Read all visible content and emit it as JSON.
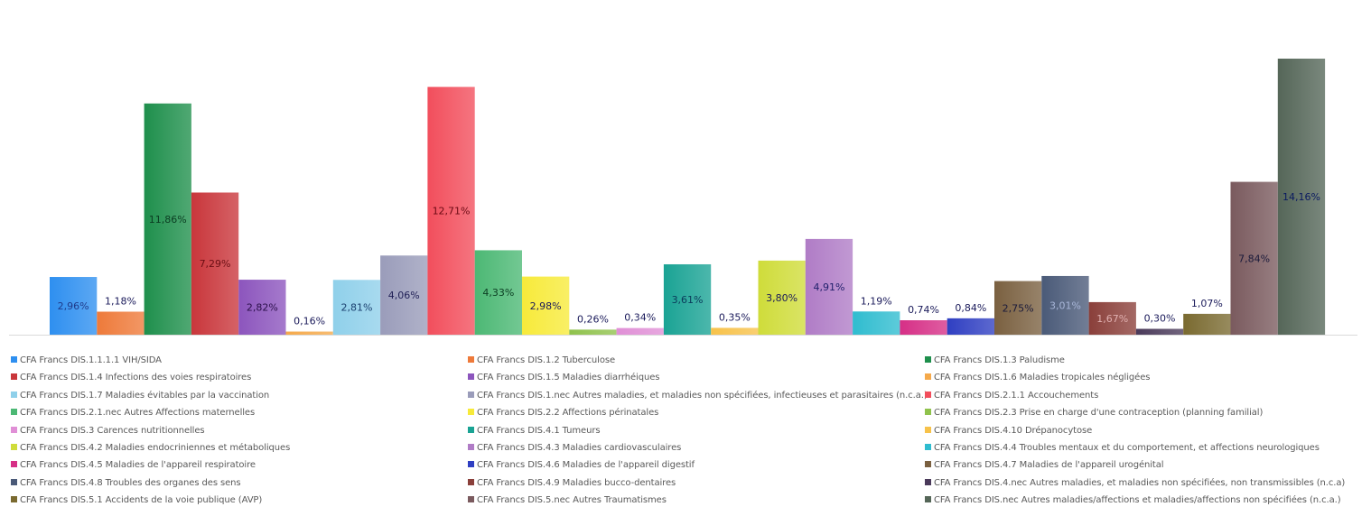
{
  "chart_data": {
    "type": "bar",
    "title": "",
    "xlabel": "",
    "ylabel": "",
    "ylim": [
      0,
      14.16
    ],
    "grid": false,
    "legend_position": "bottom",
    "value_suffix": "%",
    "series": [
      {
        "name": "CFA Francs DIS.1.1.1.1 VIH/SIDA",
        "value": 2.96,
        "label": "2,96%",
        "color": "#2e8ff0",
        "label_color": "#1f3a8a"
      },
      {
        "name": "CFA Francs DIS.1.2 Tuberculose",
        "value": 1.18,
        "label": "1,18%",
        "color": "#ee7a3a",
        "label_color": "#7f2a10"
      },
      {
        "name": "CFA Francs DIS.1.3 Paludisme",
        "value": 11.86,
        "label": "11,86%",
        "color": "#1e8f4c",
        "label_color": "#0b3d22"
      },
      {
        "name": "CFA Francs DIS.1.4 Infections des voies respiratoires",
        "value": 7.29,
        "label": "7,29%",
        "color": "#c9363b",
        "label_color": "#6b0f14"
      },
      {
        "name": "CFA Francs DIS.1.5 Maladies diarrhéiques",
        "value": 2.82,
        "label": "2,82%",
        "color": "#8c55bd",
        "label_color": "#2b0f4a"
      },
      {
        "name": "CFA Francs DIS.1.6 Maladies tropicales négligées",
        "value": 0.16,
        "label": "0,16%",
        "color": "#f5a94a",
        "label_color": "#1a1a5a"
      },
      {
        "name": "CFA Francs DIS.1.7 Maladies évitables par la vaccination",
        "value": 2.81,
        "label": "2,81%",
        "color": "#8fd0ea",
        "label_color": "#1a3f6e"
      },
      {
        "name": "CFA Francs DIS.1.nec Autres maladies, et maladies non spécifiées, infectieuses et parasitaires (n.c.a.)",
        "value": 4.06,
        "label": "4,06%",
        "color": "#9a9cba",
        "label_color": "#1f1f55"
      },
      {
        "name": "CFA Francs DIS.2.1.1 Accouchements",
        "value": 12.71,
        "label": "12,71%",
        "color": "#f24e5c",
        "label_color": "#6b0a14"
      },
      {
        "name": "CFA Francs DIS.2.1.nec Autres Affections maternelles",
        "value": 4.33,
        "label": "4,33%",
        "color": "#4cb874",
        "label_color": "#0b3d22"
      },
      {
        "name": "CFA Francs DIS.2.2 Affections périnatales",
        "value": 2.98,
        "label": "2,98%",
        "color": "#f7ea3a",
        "label_color": "#1a1a5a"
      },
      {
        "name": "CFA Francs DIS.2.3 Prise en charge d'une contraception (planning familial)",
        "value": 0.26,
        "label": "0,26%",
        "color": "#8fc24c",
        "label_color": "#1a1a5a"
      },
      {
        "name": "CFA Francs DIS.3 Carences nutritionnelles",
        "value": 0.34,
        "label": "0,34%",
        "color": "#e08fd6",
        "label_color": "#1a1a5a"
      },
      {
        "name": "CFA Francs DIS.4.1 Tumeurs",
        "value": 3.61,
        "label": "3,61%",
        "color": "#1aa394",
        "label_color": "#0a3a5a"
      },
      {
        "name": "CFA Francs DIS.4.10 Drépanocytose",
        "value": 0.35,
        "label": "0,35%",
        "color": "#f7c24a",
        "label_color": "#1a1a5a"
      },
      {
        "name": "CFA Francs DIS.4.2 Maladies endocriniennes et métaboliques",
        "value": 3.8,
        "label": "3,80%",
        "color": "#cfdc3a",
        "label_color": "#1a1a5a"
      },
      {
        "name": "CFA Francs DIS.4.3 Maladies cardiovasculaires",
        "value": 4.91,
        "label": "4,91%",
        "color": "#b07cc6",
        "label_color": "#1f1f6a"
      },
      {
        "name": "CFA Francs DIS.4.4 Troubles mentaux et du comportement, et affections neurologiques",
        "value": 1.19,
        "label": "1,19%",
        "color": "#2fbccf",
        "label_color": "#0a3a6a"
      },
      {
        "name": "CFA Francs DIS.4.5 Maladies de l'appareil respiratoire",
        "value": 0.74,
        "label": "0,74%",
        "color": "#d62f86",
        "label_color": "#6b0a3a"
      },
      {
        "name": "CFA Francs DIS.4.6 Maladies de l'appareil digestif",
        "value": 0.84,
        "label": "0,84%",
        "color": "#2f3fc2",
        "label_color": "#0a1060"
      },
      {
        "name": "CFA Francs DIS.4.7 Maladies de l'appareil urogénital",
        "value": 2.75,
        "label": "2,75%",
        "color": "#7a6040",
        "label_color": "#1a1a3a"
      },
      {
        "name": "CFA Francs DIS.4.8 Troubles des organes des sens",
        "value": 3.01,
        "label": "3,01%",
        "color": "#4a5a78",
        "label_color": "#a8b6d8"
      },
      {
        "name": "CFA Francs DIS.4.9 Maladies bucco-dentaires",
        "value": 1.67,
        "label": "1,67%",
        "color": "#8a3f3a",
        "label_color": "#e0b0b0"
      },
      {
        "name": "CFA Francs DIS.4.nec Autres maladies, et maladies non spécifiées, non transmissibles (n.c.a)",
        "value": 0.3,
        "label": "0,30%",
        "color": "#4a3a5a",
        "label_color": "#1a1a3a"
      },
      {
        "name": "CFA Francs DIS.5.1 Accidents de la voie publique (AVP)",
        "value": 1.07,
        "label": "1,07%",
        "color": "#7a6a30",
        "label_color": "#c8b870"
      },
      {
        "name": "CFA Francs DIS.5.nec Autres Traumatismes",
        "value": 7.84,
        "label": "7,84%",
        "color": "#7a5a5e",
        "label_color": "#1a1a3a"
      },
      {
        "name": "CFA Francs DIS.nec Autres maladies/affections et maladies/affections non spécifiées (n.c.a.)",
        "value": 14.16,
        "label": "14,16%",
        "color": "#556658",
        "label_color": "#0a1a60"
      }
    ]
  }
}
